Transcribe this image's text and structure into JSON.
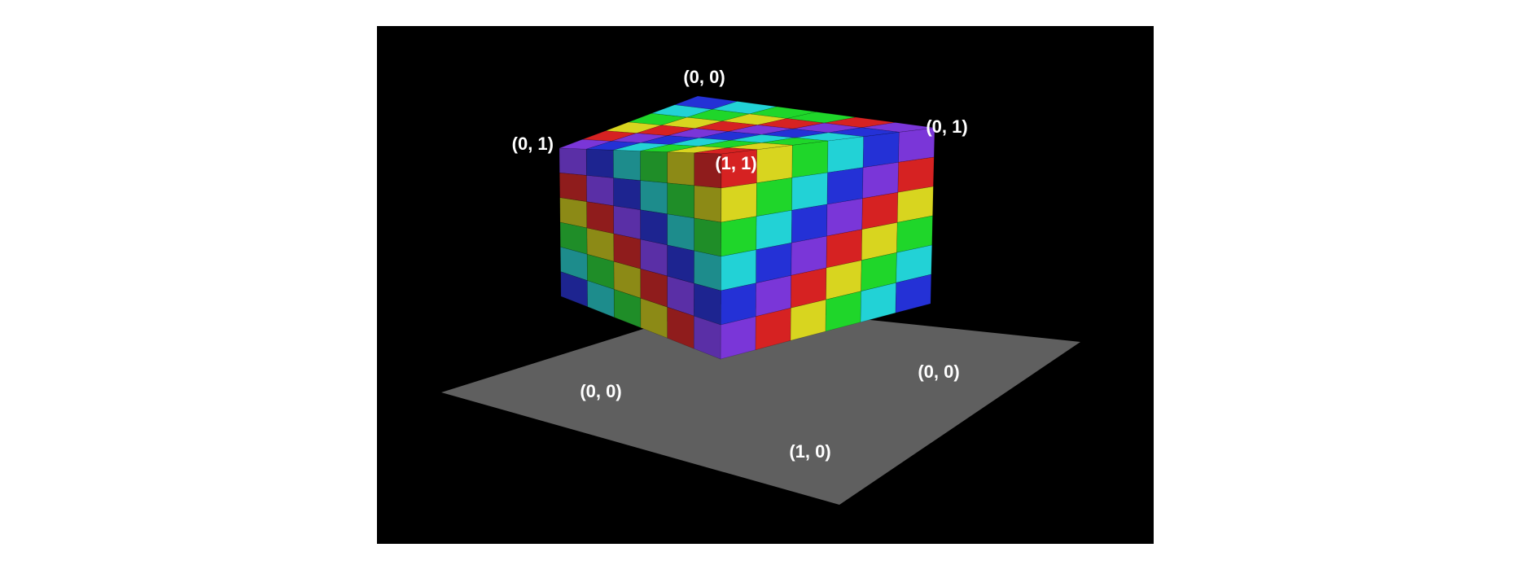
{
  "figure": {
    "background": "#000000",
    "ground_color": "#5f5f5f",
    "grid_size": 6,
    "faces": {
      "front": [
        [
          "purple",
          "navy",
          "teal",
          "green",
          "olive",
          "red"
        ],
        [
          "red",
          "purple",
          "navy",
          "teal",
          "green",
          "olive"
        ],
        [
          "olive",
          "red",
          "purple",
          "navy",
          "teal",
          "green"
        ],
        [
          "green",
          "olive",
          "red",
          "purple",
          "navy",
          "teal"
        ],
        [
          "teal",
          "green",
          "olive",
          "red",
          "purple",
          "navy"
        ],
        [
          "navy",
          "teal",
          "green",
          "olive",
          "red",
          "purple"
        ]
      ],
      "right": [
        [
          "red",
          "yellow",
          "green",
          "cyan",
          "blue",
          "purple"
        ],
        [
          "yellow",
          "green",
          "cyan",
          "blue",
          "purple",
          "red"
        ],
        [
          "green",
          "cyan",
          "blue",
          "purple",
          "red",
          "yellow"
        ],
        [
          "cyan",
          "blue",
          "purple",
          "red",
          "yellow",
          "green"
        ],
        [
          "blue",
          "purple",
          "red",
          "yellow",
          "green",
          "cyan"
        ],
        [
          "purple",
          "red",
          "yellow",
          "green",
          "cyan",
          "blue"
        ]
      ],
      "top": [
        [
          "blue",
          "cyan",
          "green",
          "green",
          "red",
          "purple"
        ],
        [
          "cyan",
          "green",
          "yellow",
          "red",
          "purple",
          "blue"
        ],
        [
          "green",
          "yellow",
          "red",
          "purple",
          "blue",
          "cyan"
        ],
        [
          "yellow",
          "red",
          "purple",
          "blue",
          "cyan",
          "green"
        ],
        [
          "red",
          "purple",
          "blue",
          "cyan",
          "green",
          "yellow"
        ],
        [
          "purple",
          "blue",
          "cyan",
          "green",
          "yellow",
          "red"
        ]
      ]
    },
    "palette": {
      "purple": [
        "#5a2fa6",
        "#7a36d8"
      ],
      "navy": [
        "#1d2490",
        "#2332d6"
      ],
      "teal": [
        "#1d8c8c",
        "#23d1d6"
      ],
      "green": [
        "#1f8d28",
        "#1fd62a"
      ],
      "olive": [
        "#8c8a16",
        "#d6d41e"
      ],
      "red": [
        "#8f1c1c",
        "#d62222"
      ],
      "yellow": [
        "#b8b21a",
        "#d8d51f"
      ],
      "cyan": [
        "#1d9ea0",
        "#22d2d6"
      ],
      "blue": [
        "#2226a8",
        "#2431d6"
      ]
    },
    "labels": {
      "top_back": "(0, 0)",
      "top_left": "(0, 1)",
      "top_right": "(0, 1)",
      "top_front": "(1, 1)",
      "bottom_left": "(0, 0)",
      "bottom_right": "(0, 0)",
      "bottom_front": "(1, 0)"
    }
  }
}
